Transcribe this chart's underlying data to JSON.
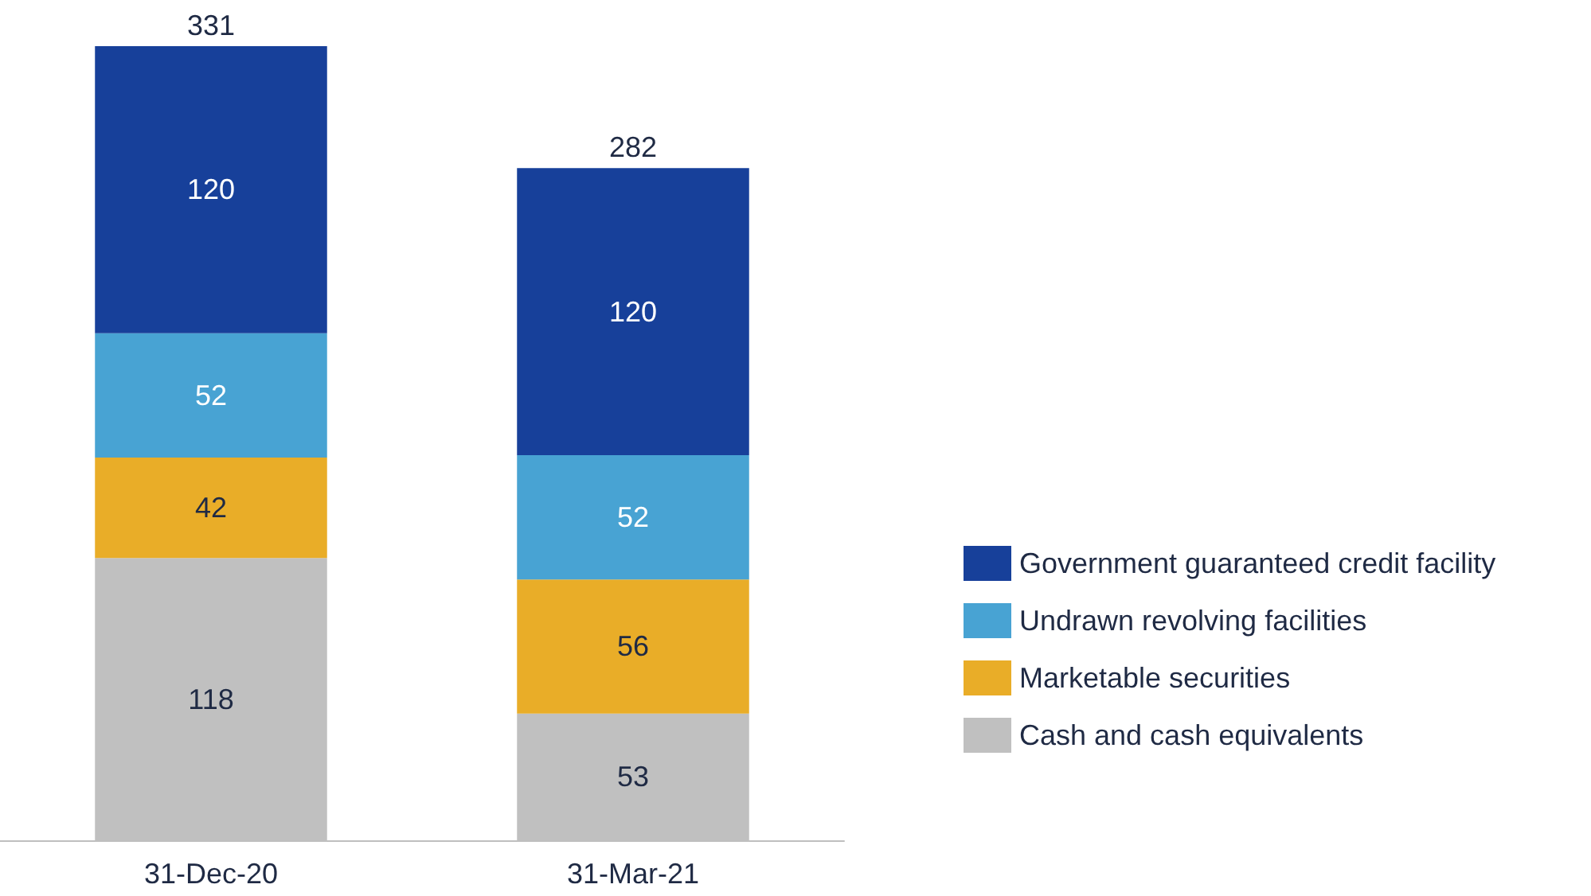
{
  "chart_data": {
    "type": "bar",
    "stacked": true,
    "categories": [
      "31-Dec-20",
      "31-Mar-21"
    ],
    "series": [
      {
        "name": "Cash and cash equivalents",
        "color": "#c0c0c0",
        "values": [
          118,
          53
        ]
      },
      {
        "name": "Marketable securities",
        "color": "#e9ad28",
        "values": [
          42,
          56
        ]
      },
      {
        "name": "Undrawn revolving facilities",
        "color": "#48a3d3",
        "values": [
          52,
          52
        ]
      },
      {
        "name": "Government guaranteed credit facility",
        "color": "#17409a",
        "values": [
          120,
          120
        ]
      }
    ],
    "data_labels": true,
    "totals": [
      "331",
      "282"
    ],
    "legend": "right"
  }
}
